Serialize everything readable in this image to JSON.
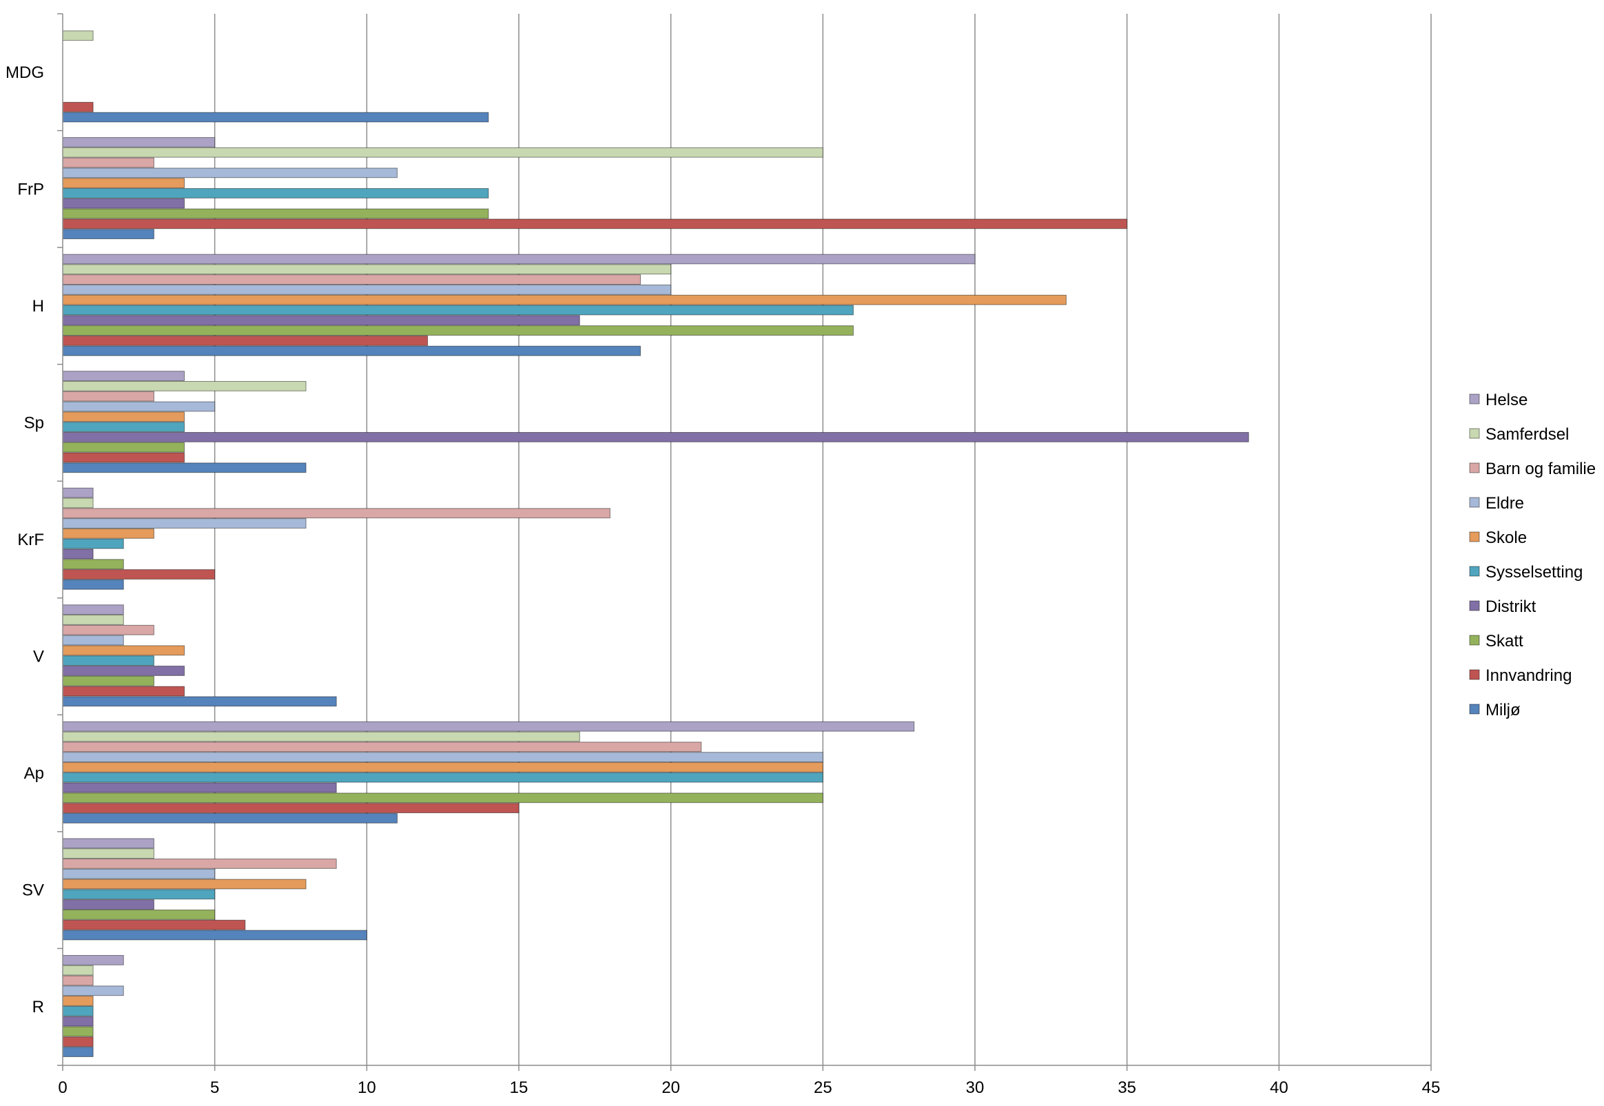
{
  "chart_data": {
    "type": "bar",
    "orientation": "horizontal",
    "categories": [
      "MDG",
      "FrP",
      "H",
      "Sp",
      "KrF",
      "V",
      "Ap",
      "SV",
      "R"
    ],
    "series": [
      {
        "name": "Helse",
        "color": "#aba2c6",
        "values": [
          0,
          5,
          30,
          4,
          1,
          2,
          28,
          3,
          2
        ]
      },
      {
        "name": "Samferdsel",
        "color": "#c8d8b0",
        "values": [
          1,
          25,
          20,
          8,
          1,
          2,
          17,
          3,
          1
        ]
      },
      {
        "name": "Barn og familie",
        "color": "#d9a7a6",
        "values": [
          0,
          3,
          19,
          3,
          18,
          3,
          21,
          9,
          1
        ]
      },
      {
        "name": "Eldre",
        "color": "#a7b9d8",
        "values": [
          0,
          11,
          20,
          5,
          8,
          2,
          25,
          5,
          2
        ]
      },
      {
        "name": "Skole",
        "color": "#e49b5b",
        "values": [
          0,
          4,
          33,
          4,
          3,
          4,
          25,
          8,
          1
        ]
      },
      {
        "name": "Sysselsetting",
        "color": "#4fa5bd",
        "values": [
          0,
          14,
          26,
          4,
          2,
          3,
          25,
          5,
          1
        ]
      },
      {
        "name": "Distrikt",
        "color": "#8170a6",
        "values": [
          0,
          4,
          17,
          39,
          1,
          4,
          9,
          3,
          1
        ]
      },
      {
        "name": "Skatt",
        "color": "#94b25b",
        "values": [
          0,
          14,
          26,
          4,
          2,
          3,
          25,
          5,
          1
        ]
      },
      {
        "name": "Innvandring",
        "color": "#bf5552",
        "values": [
          1,
          35,
          12,
          4,
          5,
          4,
          15,
          6,
          1
        ]
      },
      {
        "name": "Miljø",
        "color": "#5583bb",
        "values": [
          14,
          3,
          19,
          8,
          2,
          9,
          11,
          10,
          1
        ]
      }
    ],
    "x_ticks": [
      0,
      5,
      10,
      15,
      20,
      25,
      30,
      35,
      40,
      45
    ],
    "xlim": [
      0,
      45
    ],
    "gridlines": "vertical",
    "legend_position": "right"
  }
}
